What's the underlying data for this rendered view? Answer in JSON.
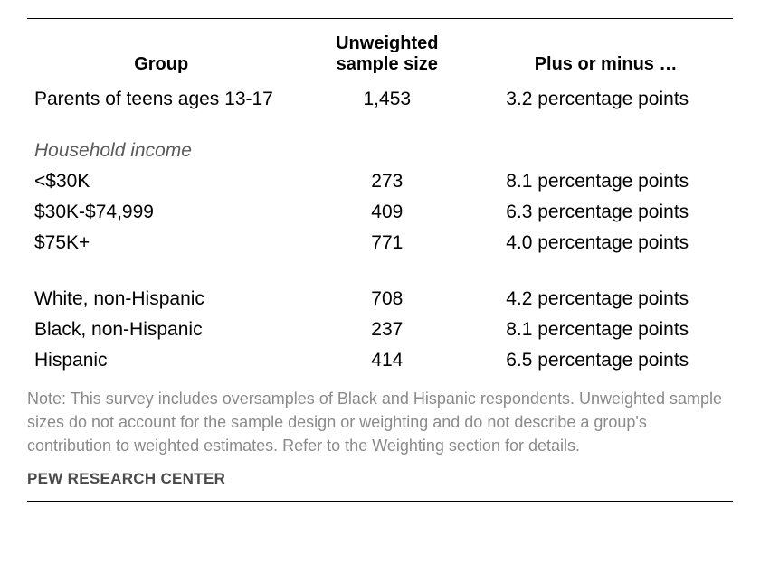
{
  "type": "table",
  "background_color": "#ffffff",
  "text_color": "#000000",
  "note_color": "#8a8a8a",
  "source_color": "#4a4a4a",
  "columns": {
    "group": "Group",
    "size": "Unweighted sample size",
    "moe": "Plus or minus …"
  },
  "rows": {
    "overall": {
      "group": "Parents of teens ages 13-17",
      "size": "1,453",
      "moe": "3.2 percentage points"
    },
    "income_header": "Household income",
    "income": [
      {
        "group": "<$30K",
        "size": "273",
        "moe": "8.1 percentage points"
      },
      {
        "group": "$30K-$74,999",
        "size": "409",
        "moe": "6.3 percentage points"
      },
      {
        "group": "$75K+",
        "size": "771",
        "moe": "4.0 percentage points"
      }
    ],
    "race": [
      {
        "group": "White, non-Hispanic",
        "size": "708",
        "moe": "4.2 percentage points"
      },
      {
        "group": "Black, non-Hispanic",
        "size": "237",
        "moe": "8.1 percentage points"
      },
      {
        "group": "Hispanic",
        "size": "414",
        "moe": "6.5 percentage points"
      }
    ]
  },
  "note": "Note: This survey includes oversamples of Black and Hispanic respondents. Unweighted sample sizes do not account for the sample design or weighting and do not describe a group's contribution to weighted estimates. Refer to the Weighting section for details.",
  "source": "PEW RESEARCH CENTER"
}
